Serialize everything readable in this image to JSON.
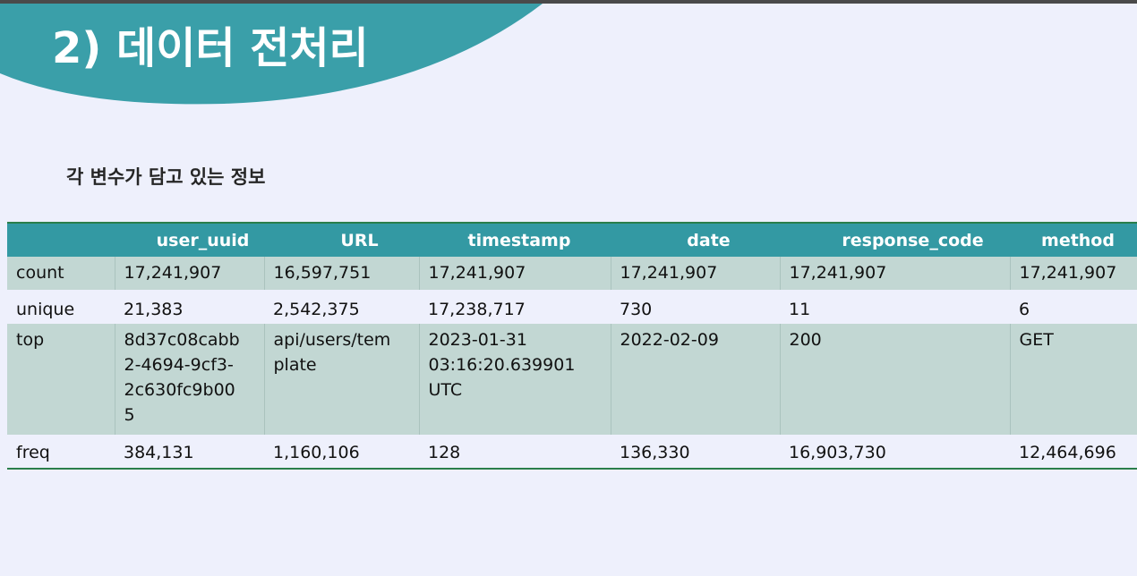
{
  "slide": {
    "title": "2) 데이터 전처리",
    "subtitle": "각 변수가 담고 있는 정보"
  },
  "colors": {
    "banner": "#3a9fa9",
    "header": "#3399a3",
    "row_shade": "#c2d7d3",
    "background": "#eef0fc",
    "rule": "#2a7e4a"
  },
  "table": {
    "columns": [
      "",
      "user_uuid",
      "URL",
      "timestamp",
      "date",
      "response_code",
      "method"
    ],
    "rows": [
      {
        "label": "count",
        "cells": [
          "17,241,907",
          "16,597,751",
          "17,241,907",
          "17,241,907",
          "17,241,907",
          "17,241,907"
        ]
      },
      {
        "label": "unique",
        "cells": [
          "21,383",
          "2,542,375",
          "17,238,717",
          "730",
          "11",
          "6"
        ]
      },
      {
        "label": "top",
        "cells": [
          [
            "8d37c08cabb",
            "2-4694-9cf3-",
            "2c630fc9b00",
            "5"
          ],
          [
            "api/users/tem",
            "plate"
          ],
          [
            "2023-01-31",
            "03:16:20.639901",
            "UTC"
          ],
          [
            "2022-02-09"
          ],
          [
            "200"
          ],
          [
            "GET"
          ]
        ]
      },
      {
        "label": "freq",
        "cells": [
          "384,131",
          "1,160,106",
          "128",
          "136,330",
          "16,903,730",
          "12,464,696"
        ]
      }
    ]
  }
}
